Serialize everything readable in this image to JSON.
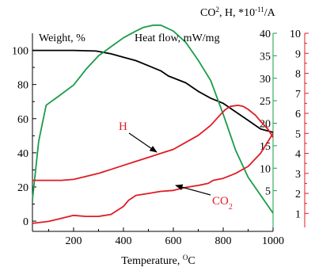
{
  "chart_data": {
    "type": "line",
    "title": "",
    "colors": {
      "weight": "#000000",
      "heat_flow": "#1a9c4a",
      "h": "#e01b24",
      "co2": "#e01b24",
      "annotation": "#e01b24",
      "arrow": "#000000"
    },
    "x_axis": {
      "label": "Temperature, ",
      "label_sup": "O",
      "label_unit": "C",
      "range": [
        35,
        1000
      ],
      "ticks": [
        200,
        400,
        600,
        800,
        1000
      ]
    },
    "y_axes": {
      "weight": {
        "label": "Weight, %",
        "range": [
          -6,
          110
        ],
        "ticks": [
          0,
          20,
          40,
          60,
          80,
          100
        ],
        "side": "left"
      },
      "heat_flow": {
        "label": "Heat flow, mW/mg",
        "range": [
          0,
          40
        ],
        "ticks": [
          5,
          10,
          15,
          20,
          25,
          30,
          35,
          40
        ],
        "side": "right-inner"
      },
      "ms": {
        "label_pre": "CO",
        "label_sup": "2",
        "label_post": ", H, *10",
        "label_sup2": "-11",
        "label_end": "/A",
        "range": [
          0.3,
          10
        ],
        "ticks": [
          1,
          2,
          3,
          4,
          5,
          6,
          7,
          8,
          9,
          10
        ],
        "side": "right-outer"
      }
    },
    "series": [
      {
        "axis": "weight",
        "x": [
          35,
          100,
          200,
          290,
          350,
          400,
          450,
          500,
          550,
          580,
          650,
          700,
          750,
          800,
          850,
          900,
          950,
          1000
        ],
        "values": [
          100,
          100,
          100,
          99.6,
          98,
          96,
          94,
          91,
          88,
          85,
          81,
          76,
          72,
          69,
          64,
          59,
          54,
          52
        ]
      },
      {
        "axis": "heat_flow",
        "x": [
          35,
          60,
          90,
          140,
          200,
          250,
          300,
          350,
          400,
          450,
          480,
          520,
          550,
          600,
          650,
          700,
          750,
          800,
          850,
          900,
          950,
          1000
        ],
        "values": [
          3,
          16,
          24,
          26,
          28.5,
          32,
          35,
          37,
          39,
          40.5,
          41.3,
          41.8,
          41.8,
          40.5,
          38,
          34,
          29.5,
          22,
          14,
          8,
          4,
          0
        ]
      },
      {
        "axis": "ms",
        "x": [
          35,
          150,
          200,
          250,
          300,
          350,
          400,
          450,
          500,
          550,
          600,
          650,
          700,
          750,
          790,
          810,
          830,
          860,
          880,
          900,
          930,
          950,
          980,
          1000
        ],
        "values": [
          2.65,
          2.65,
          2.7,
          2.85,
          3.0,
          3.2,
          3.4,
          3.6,
          3.8,
          4.0,
          4.2,
          4.55,
          4.9,
          5.4,
          5.95,
          6.2,
          6.35,
          6.4,
          6.35,
          6.2,
          5.9,
          5.6,
          5.2,
          4.8
        ]
      },
      {
        "axis": "ms",
        "x": [
          35,
          100,
          150,
          200,
          250,
          300,
          350,
          400,
          420,
          450,
          500,
          550,
          600,
          650,
          700,
          740,
          760,
          800,
          850,
          900,
          950,
          1000
        ],
        "values": [
          0.5,
          0.6,
          0.75,
          0.9,
          0.85,
          0.85,
          0.95,
          1.35,
          1.65,
          1.9,
          2.0,
          2.1,
          2.15,
          2.3,
          2.4,
          2.5,
          2.65,
          2.75,
          3.0,
          3.35,
          4.0,
          5.0
        ]
      }
    ],
    "annotations": [
      {
        "text": "H"
      },
      {
        "text_main": "CO",
        "text_sub": "2"
      }
    ],
    "grid": false
  }
}
